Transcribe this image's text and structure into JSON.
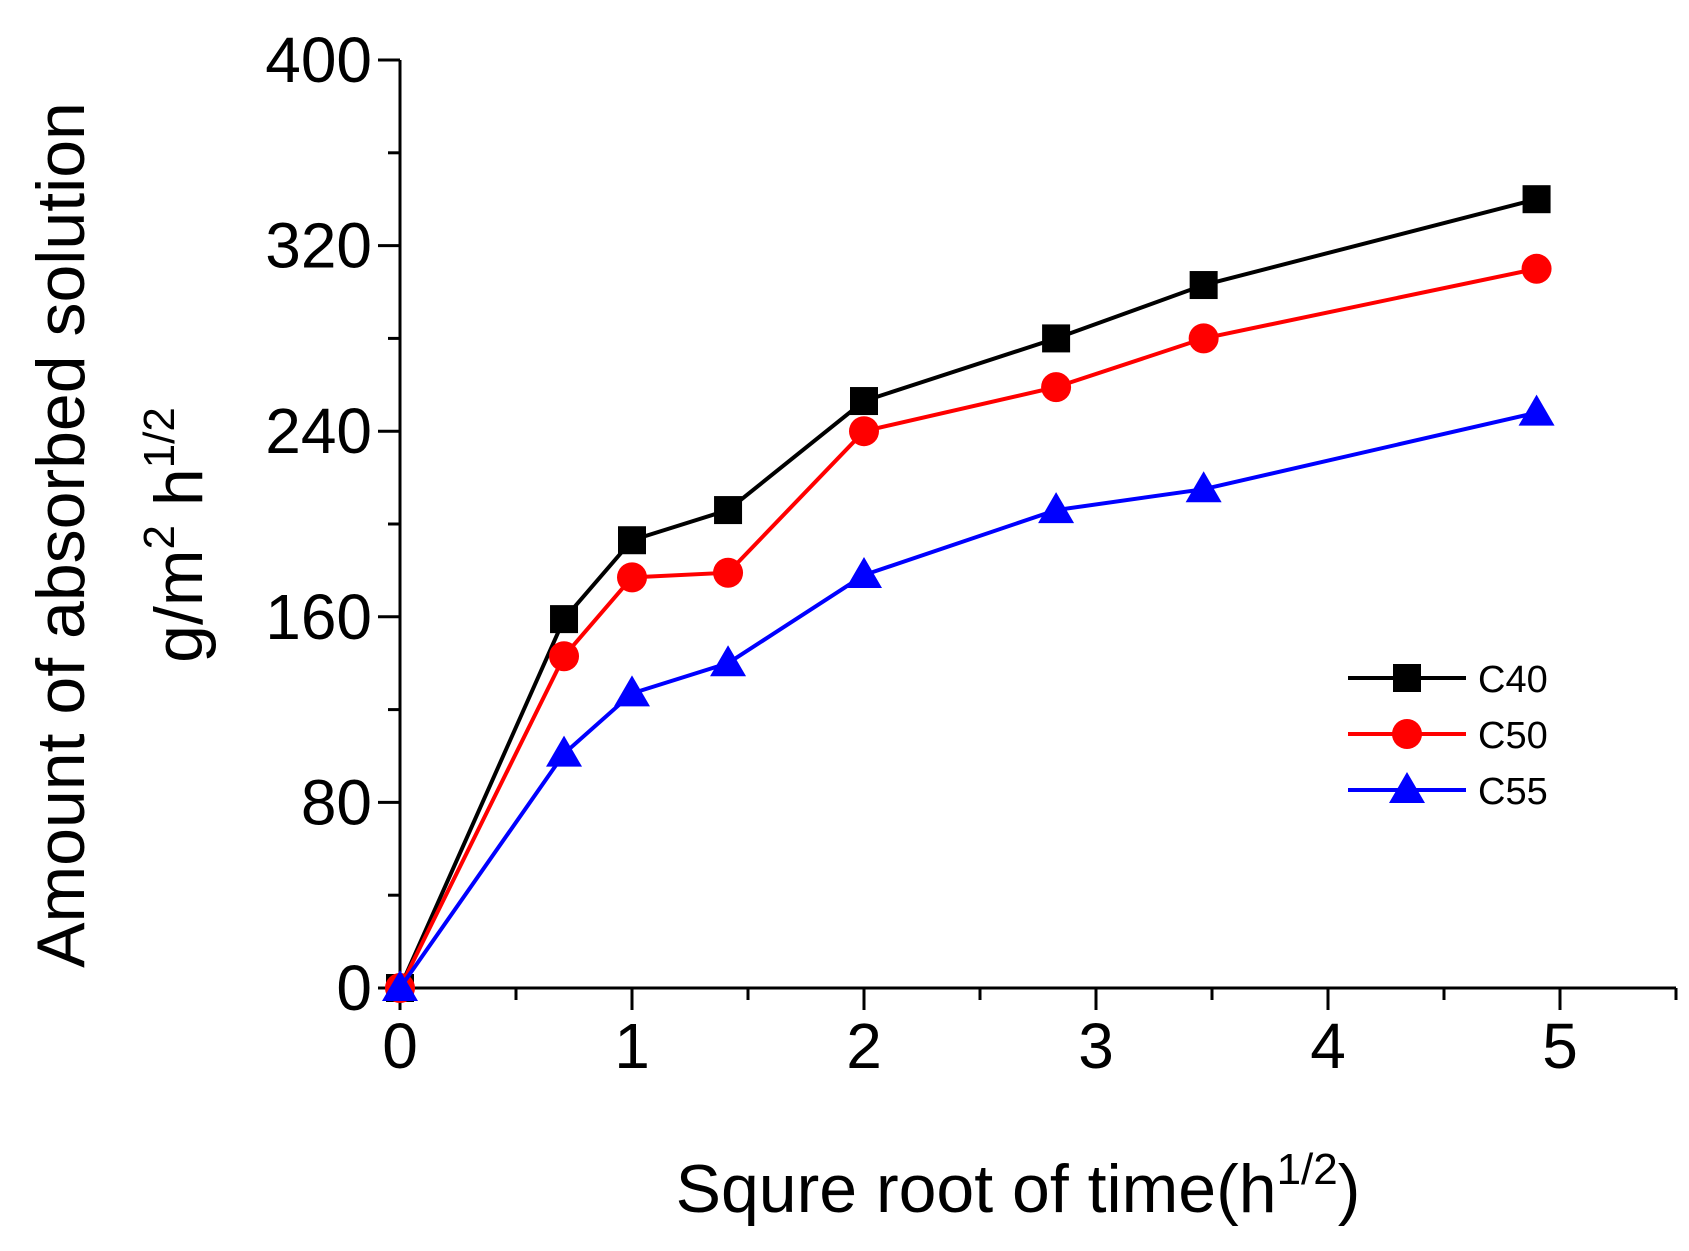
{
  "chart_data": {
    "type": "line",
    "title": "",
    "xlabel": "Squre root of time(h",
    "xlabel_sup": "1/2",
    "xlabel_tail": ")",
    "ylabel_line1": "Amount of absorbed solution",
    "ylabel_line2_a": "g/m",
    "ylabel_line2_sup1": "2",
    "ylabel_line2_b": " h",
    "ylabel_line2_sup2": "1/2",
    "xlim": [
      0,
      5.5
    ],
    "ylim": [
      0,
      400
    ],
    "xticks": [
      0,
      1,
      2,
      3,
      4,
      5
    ],
    "xticks_minor": [
      0.5,
      1.5,
      2.5,
      3.5,
      4.5,
      5.5
    ],
    "yticks": [
      0,
      80,
      160,
      240,
      320,
      400
    ],
    "yticks_minor": [
      40,
      120,
      200,
      280,
      360
    ],
    "grid": false,
    "legend_position": "right",
    "x": [
      0,
      0.707,
      1,
      1.414,
      2,
      2.828,
      3.464,
      4.899
    ],
    "series": [
      {
        "name": "C40",
        "color": "#000000",
        "marker": "square",
        "values": [
          0,
          159,
          193,
          206,
          253,
          280,
          303,
          340
        ]
      },
      {
        "name": "C50",
        "color": "#ff0000",
        "marker": "circle",
        "values": [
          0,
          143,
          177,
          179,
          240,
          259,
          280,
          310
        ]
      },
      {
        "name": "C55",
        "color": "#0000ff",
        "marker": "triangle",
        "values": [
          0,
          101,
          127,
          140,
          178,
          206,
          215,
          248
        ]
      }
    ]
  }
}
